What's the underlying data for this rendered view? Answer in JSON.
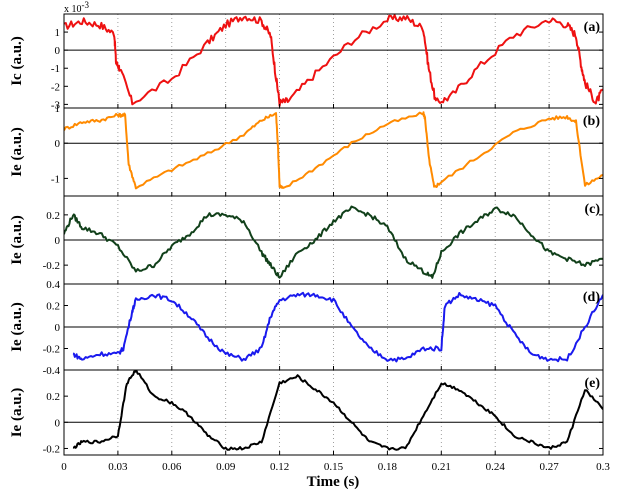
{
  "chart_data": {
    "type": "line",
    "xlabel": "Time (s)",
    "xlim": [
      0,
      0.3
    ],
    "x_ticks": [
      "0",
      "0.03",
      "0.06",
      "0.09",
      "0.12",
      "0.15",
      "0.18",
      "0.21",
      "0.24",
      "0.27",
      "0.3"
    ],
    "grid": "dotted vertical lines at x ticks; solid zero line",
    "panels": [
      {
        "label": "(a)",
        "ylabel": "Ic (a.u.)",
        "multiplier": "x 10",
        "multiplier_exp": "-3",
        "ylim": [
          -3.2,
          2.0
        ],
        "y_ticks": [
          "-3",
          "-2",
          "-1",
          "0",
          "1"
        ],
        "y_tick_values": [
          -3,
          -2,
          -1,
          0,
          1
        ],
        "color": "#ee1111",
        "x": [
          0,
          0.01,
          0.02,
          0.028,
          0.029,
          0.031,
          0.038,
          0.06,
          0.08,
          0.09,
          0.1,
          0.11,
          0.115,
          0.118,
          0.12,
          0.125,
          0.14,
          0.16,
          0.18,
          0.19,
          0.2,
          0.203,
          0.207,
          0.215,
          0.23,
          0.25,
          0.27,
          0.28,
          0.285,
          0.288,
          0.29,
          0.296,
          0.3
        ],
        "y": [
          1.3,
          1.6,
          1.4,
          0.9,
          -0.7,
          -1.0,
          -2.9,
          -1.6,
          0.4,
          1.4,
          1.9,
          1.6,
          0.8,
          -1.5,
          -2.9,
          -2.8,
          -1.3,
          0.5,
          1.7,
          1.8,
          1.2,
          -1.0,
          -2.9,
          -2.6,
          -1.0,
          0.8,
          1.7,
          1.4,
          0.8,
          -0.9,
          -1.8,
          -2.9,
          -2.2
        ]
      },
      {
        "label": "(b)",
        "ylabel": "Ie (a.u.)",
        "ylim": [
          -1.5,
          1.0
        ],
        "y_ticks": [
          "-1",
          "0",
          "1"
        ],
        "y_tick_values": [
          -1,
          0,
          1
        ],
        "color": "#ff8a00",
        "x": [
          0,
          0.01,
          0.02,
          0.03,
          0.034,
          0.036,
          0.04,
          0.06,
          0.08,
          0.1,
          0.11,
          0.118,
          0.119,
          0.12,
          0.122,
          0.14,
          0.16,
          0.18,
          0.2,
          0.201,
          0.203,
          0.206,
          0.21,
          0.23,
          0.25,
          0.27,
          0.28,
          0.285,
          0.29,
          0.3
        ],
        "y": [
          0.4,
          0.6,
          0.65,
          0.8,
          0.8,
          -0.6,
          -1.25,
          -0.75,
          -0.3,
          0.25,
          0.65,
          0.85,
          0.0,
          -1.2,
          -1.3,
          -0.7,
          0.0,
          0.55,
          0.85,
          0.7,
          -0.4,
          -1.25,
          -1.1,
          -0.4,
          0.3,
          0.7,
          0.75,
          0.6,
          -1.2,
          -0.9
        ]
      },
      {
        "label": "(c)",
        "ylabel": "Ie (a.u.)",
        "ylim": [
          -0.35,
          0.35
        ],
        "y_ticks": [
          "-0.2",
          "0",
          "0.2"
        ],
        "y_tick_values": [
          -0.2,
          0,
          0.2
        ],
        "color": "#11401a",
        "x": [
          0,
          0.005,
          0.01,
          0.02,
          0.03,
          0.04,
          0.05,
          0.06,
          0.07,
          0.08,
          0.09,
          0.1,
          0.11,
          0.115,
          0.12,
          0.13,
          0.14,
          0.15,
          0.16,
          0.17,
          0.18,
          0.19,
          0.2,
          0.205,
          0.21,
          0.22,
          0.23,
          0.24,
          0.25,
          0.26,
          0.27,
          0.28,
          0.29,
          0.3
        ],
        "y": [
          0.05,
          0.2,
          0.1,
          0.05,
          -0.05,
          -0.25,
          -0.2,
          -0.05,
          0.05,
          0.2,
          0.2,
          0.15,
          -0.1,
          -0.2,
          -0.3,
          -0.1,
          0.0,
          0.15,
          0.25,
          0.2,
          0.1,
          -0.15,
          -0.25,
          -0.3,
          -0.1,
          0.05,
          0.15,
          0.25,
          0.2,
          0.05,
          -0.1,
          -0.15,
          -0.2,
          -0.15
        ]
      },
      {
        "label": "(d)",
        "ylabel": "Ie (a.u.)",
        "ylim": [
          -0.4,
          0.4
        ],
        "y_ticks": [
          "-0.4",
          "-0.2",
          "0",
          "0.2",
          "0.4"
        ],
        "y_tick_values": [
          -0.4,
          -0.2,
          0,
          0.2,
          0.4
        ],
        "color": "#1a1aee",
        "x": [
          0.005,
          0.01,
          0.02,
          0.03,
          0.033,
          0.038,
          0.04,
          0.05,
          0.06,
          0.07,
          0.08,
          0.09,
          0.1,
          0.11,
          0.115,
          0.12,
          0.13,
          0.14,
          0.15,
          0.16,
          0.17,
          0.18,
          0.19,
          0.2,
          0.21,
          0.212,
          0.22,
          0.23,
          0.24,
          0.25,
          0.26,
          0.27,
          0.28,
          0.29,
          0.3
        ],
        "y": [
          -0.25,
          -0.3,
          -0.25,
          -0.25,
          -0.2,
          0.15,
          0.25,
          0.3,
          0.25,
          0.1,
          -0.1,
          -0.25,
          -0.3,
          -0.2,
          0.1,
          0.25,
          0.3,
          0.3,
          0.25,
          0.0,
          -0.2,
          -0.3,
          -0.3,
          -0.2,
          -0.2,
          0.2,
          0.3,
          0.25,
          0.2,
          -0.05,
          -0.25,
          -0.3,
          -0.3,
          0.0,
          0.3
        ]
      },
      {
        "label": "(e)",
        "ylabel": "Ie (a.u.)",
        "ylim": [
          -0.25,
          0.4
        ],
        "y_ticks": [
          "-0.2",
          "0",
          "0.2"
        ],
        "y_tick_values": [
          -0.2,
          0,
          0.2
        ],
        "color": "#000000",
        "x": [
          0.005,
          0.01,
          0.02,
          0.03,
          0.035,
          0.04,
          0.05,
          0.06,
          0.07,
          0.08,
          0.09,
          0.1,
          0.11,
          0.12,
          0.13,
          0.14,
          0.15,
          0.16,
          0.17,
          0.18,
          0.19,
          0.2,
          0.21,
          0.22,
          0.23,
          0.24,
          0.25,
          0.26,
          0.27,
          0.28,
          0.29,
          0.3
        ],
        "y": [
          -0.2,
          -0.15,
          -0.15,
          -0.1,
          0.3,
          0.4,
          0.2,
          0.15,
          0.05,
          -0.1,
          -0.2,
          -0.2,
          -0.15,
          0.3,
          0.35,
          0.25,
          0.15,
          0.0,
          -0.15,
          -0.2,
          -0.2,
          0.05,
          0.3,
          0.25,
          0.15,
          0.05,
          -0.1,
          -0.15,
          -0.2,
          -0.15,
          0.25,
          0.1
        ]
      }
    ]
  }
}
